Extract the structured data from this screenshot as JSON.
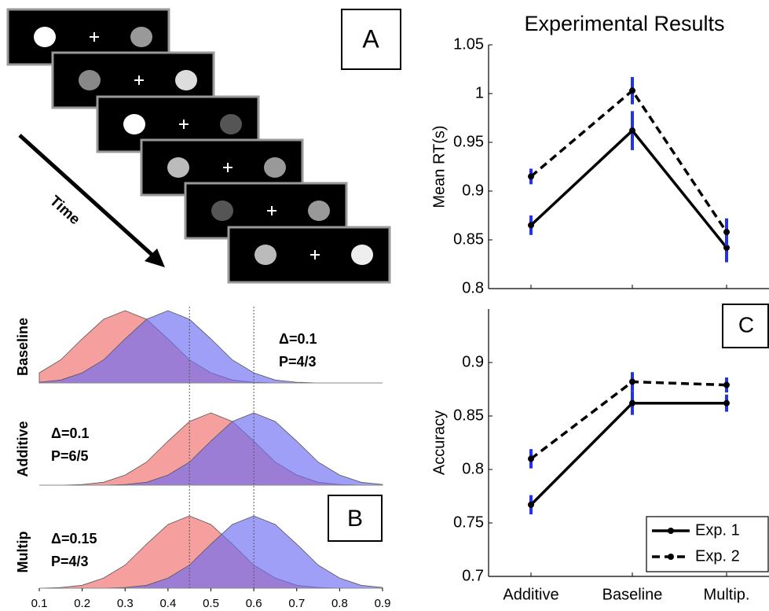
{
  "panel_a": {
    "label": "A",
    "time_label": "Time"
  },
  "panel_b_label": "B",
  "panel_c_label": "C",
  "chart_data": [
    {
      "type": "area",
      "x": [
        0.1,
        0.15,
        0.2,
        0.25,
        0.3,
        0.35,
        0.4,
        0.45,
        0.5,
        0.55,
        0.6,
        0.65,
        0.7,
        0.75,
        0.8,
        0.85,
        0.9
      ],
      "xlim": [
        0.1,
        0.9
      ],
      "xticks": [
        0.1,
        0.2,
        0.3,
        0.4,
        0.5,
        0.6,
        0.7,
        0.8,
        0.9
      ],
      "vlines": [
        0.45,
        0.6
      ],
      "rows": [
        {
          "label": "Baseline",
          "annotations": [
            "Δ=0.1",
            "P=4/3"
          ],
          "series": [
            {
              "color": "#f06b6b",
              "values": [
                0.14,
                0.32,
                0.61,
                0.88,
                1,
                0.88,
                0.61,
                0.32,
                0.14,
                0.04,
                0.01,
                0,
                0,
                0,
                0,
                0,
                0
              ]
            },
            {
              "color": "#6b6bf5",
              "values": [
                0.01,
                0.04,
                0.14,
                0.32,
                0.61,
                0.88,
                1,
                0.88,
                0.61,
                0.32,
                0.14,
                0.04,
                0.01,
                0,
                0,
                0,
                0
              ]
            }
          ]
        },
        {
          "label": "Additive",
          "annotations": [
            "Δ=0.1",
            "P=6/5"
          ],
          "series": [
            {
              "color": "#f06b6b",
              "values": [
                0,
                0,
                0.01,
                0.04,
                0.14,
                0.32,
                0.61,
                0.88,
                1,
                0.88,
                0.61,
                0.32,
                0.14,
                0.04,
                0.01,
                0,
                0
              ]
            },
            {
              "color": "#6b6bf5",
              "values": [
                0,
                0,
                0,
                0,
                0.01,
                0.04,
                0.14,
                0.32,
                0.61,
                0.88,
                1,
                0.88,
                0.61,
                0.32,
                0.14,
                0.04,
                0.01
              ]
            }
          ]
        },
        {
          "label": "Multip",
          "annotations": [
            "Δ=0.15",
            "P=4/3"
          ],
          "series": [
            {
              "color": "#f06b6b",
              "values": [
                0,
                0.01,
                0.04,
                0.14,
                0.32,
                0.61,
                0.88,
                1,
                0.88,
                0.61,
                0.32,
                0.14,
                0.04,
                0.01,
                0,
                0,
                0
              ]
            },
            {
              "color": "#6b6bf5",
              "values": [
                0,
                0,
                0,
                0,
                0.01,
                0.04,
                0.14,
                0.32,
                0.61,
                0.88,
                1,
                0.88,
                0.61,
                0.32,
                0.14,
                0.04,
                0.01
              ]
            }
          ]
        }
      ]
    },
    {
      "type": "line",
      "title": "Experimental Results",
      "y_label": "Mean RT(s)",
      "categories": [
        null,
        null,
        null
      ],
      "ylim": [
        0.8,
        1.05
      ],
      "yticks": [
        0.8,
        0.85,
        0.9,
        0.95,
        1,
        1.05
      ],
      "error_color": "#2233ee",
      "series": [
        {
          "color": "#000000",
          "line_style": "solid",
          "values": [
            0.865,
            0.962,
            0.842
          ],
          "errors": [
            0.01,
            0.02,
            0.015
          ]
        },
        {
          "color": "#000000",
          "line_style": "dashed",
          "values": [
            0.915,
            1.003,
            0.858
          ],
          "errors": [
            0.008,
            0.014,
            0.014
          ]
        }
      ]
    },
    {
      "type": "line",
      "y_label": "Accuracy",
      "categories": [
        "Additive",
        "Baseline",
        "Multip."
      ],
      "ylim": [
        0.7,
        0.95
      ],
      "yticks": [
        0.7,
        0.75,
        0.8,
        0.85,
        0.9
      ],
      "error_color": "#2233ee",
      "legend": "lower right",
      "series": [
        {
          "name": "Exp. 1",
          "color": "#000000",
          "line_style": "solid",
          "values": [
            0.767,
            0.862,
            0.862
          ],
          "errors": [
            0.009,
            0.011,
            0.008
          ]
        },
        {
          "name": "Exp. 2",
          "color": "#000000",
          "line_style": "dashed",
          "values": [
            0.81,
            0.882,
            0.879
          ],
          "errors": [
            0.009,
            0.009,
            0.007
          ]
        }
      ]
    }
  ]
}
